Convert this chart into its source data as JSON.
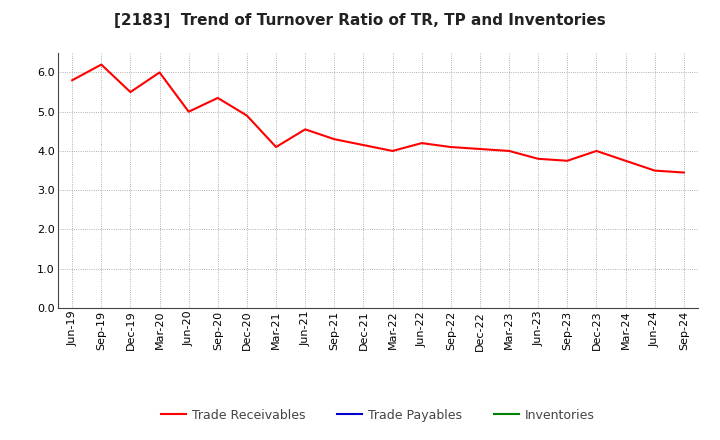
{
  "title": "[2183]  Trend of Turnover Ratio of TR, TP and Inventories",
  "x_labels": [
    "Jun-19",
    "Sep-19",
    "Dec-19",
    "Mar-20",
    "Jun-20",
    "Sep-20",
    "Dec-20",
    "Mar-21",
    "Jun-21",
    "Sep-21",
    "Dec-21",
    "Mar-22",
    "Jun-22",
    "Sep-22",
    "Dec-22",
    "Mar-23",
    "Jun-23",
    "Sep-23",
    "Dec-23",
    "Mar-24",
    "Jun-24",
    "Sep-24"
  ],
  "trade_receivables": [
    5.8,
    6.2,
    5.5,
    6.0,
    5.0,
    5.35,
    4.9,
    4.1,
    4.55,
    4.3,
    4.15,
    4.0,
    4.2,
    4.1,
    4.05,
    4.0,
    3.8,
    3.75,
    4.0,
    3.75,
    3.5,
    3.45
  ],
  "trade_payables": [],
  "inventories": [],
  "tr_color": "#FF0000",
  "tp_color": "#0000CD",
  "inv_color": "#008000",
  "background_color": "#FFFFFF",
  "grid_color": "#999999",
  "ylim": [
    0,
    6.5
  ],
  "yticks": [
    0.0,
    1.0,
    2.0,
    3.0,
    4.0,
    5.0,
    6.0
  ],
  "legend_labels": [
    "Trade Receivables",
    "Trade Payables",
    "Inventories"
  ],
  "title_fontsize": 11,
  "axis_fontsize": 8,
  "legend_fontsize": 9
}
